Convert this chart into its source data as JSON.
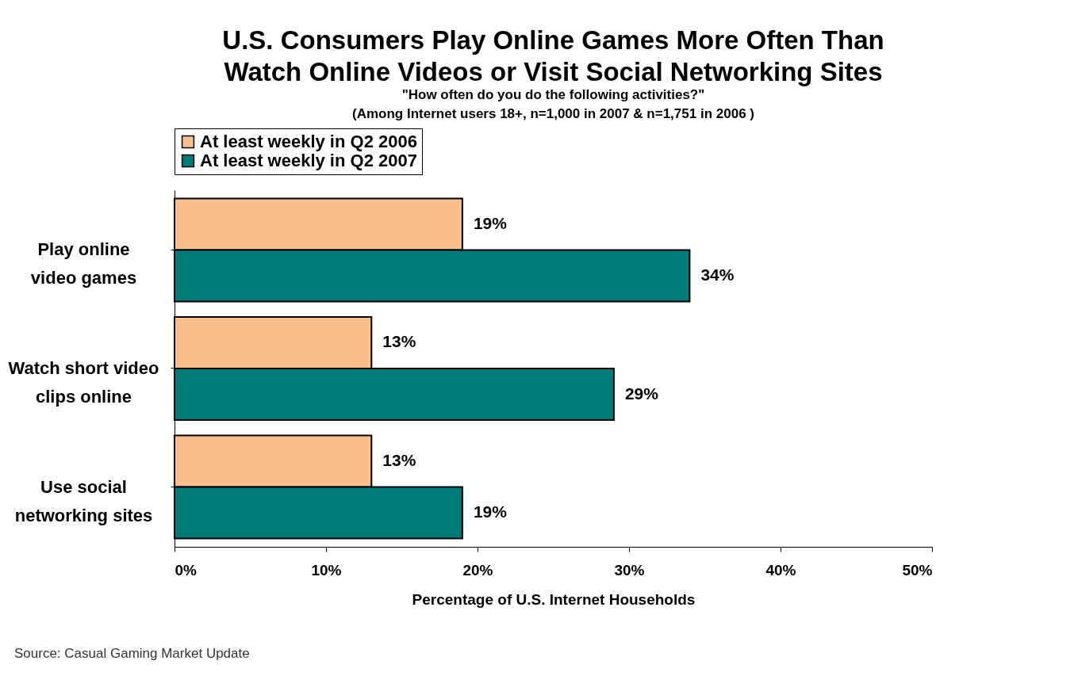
{
  "chart_data": {
    "type": "bar",
    "orientation": "horizontal",
    "title": "U.S. Consumers Play Online Games More Often Than\nWatch Online Videos or Visit Social Networking Sites",
    "subtitle": "\"How often do you do the following activities?\"\n(Among Internet users 18+, n=1,000 in 2007 & n=1,751 in 2006 )",
    "xlabel": "Percentage of U.S. Internet  Households",
    "categories": [
      "Play online video games",
      "Watch short video clips online",
      "Use social networking sites"
    ],
    "series": [
      {
        "name": "At least weekly in Q2 2006",
        "color": "#f9c08e",
        "values": [
          19,
          13,
          13
        ],
        "value_labels": [
          "19%",
          "13%",
          "13%"
        ]
      },
      {
        "name": "At least weekly in Q2 2007",
        "color": "#007a78",
        "values": [
          34,
          29,
          19
        ],
        "value_labels": [
          "34%",
          "29%",
          "19%"
        ]
      }
    ],
    "xlim": [
      0,
      50
    ],
    "xticks": [
      {
        "value": 0,
        "label": "0%"
      },
      {
        "value": 10,
        "label": "10%"
      },
      {
        "value": 20,
        "label": "20%"
      },
      {
        "value": 30,
        "label": "30%"
      },
      {
        "value": 40,
        "label": "40%"
      },
      {
        "value": 50,
        "label": "50%"
      }
    ],
    "legend": "top",
    "grid": false,
    "annotations": [
      "Source:  Casual Gaming Market Update"
    ]
  }
}
